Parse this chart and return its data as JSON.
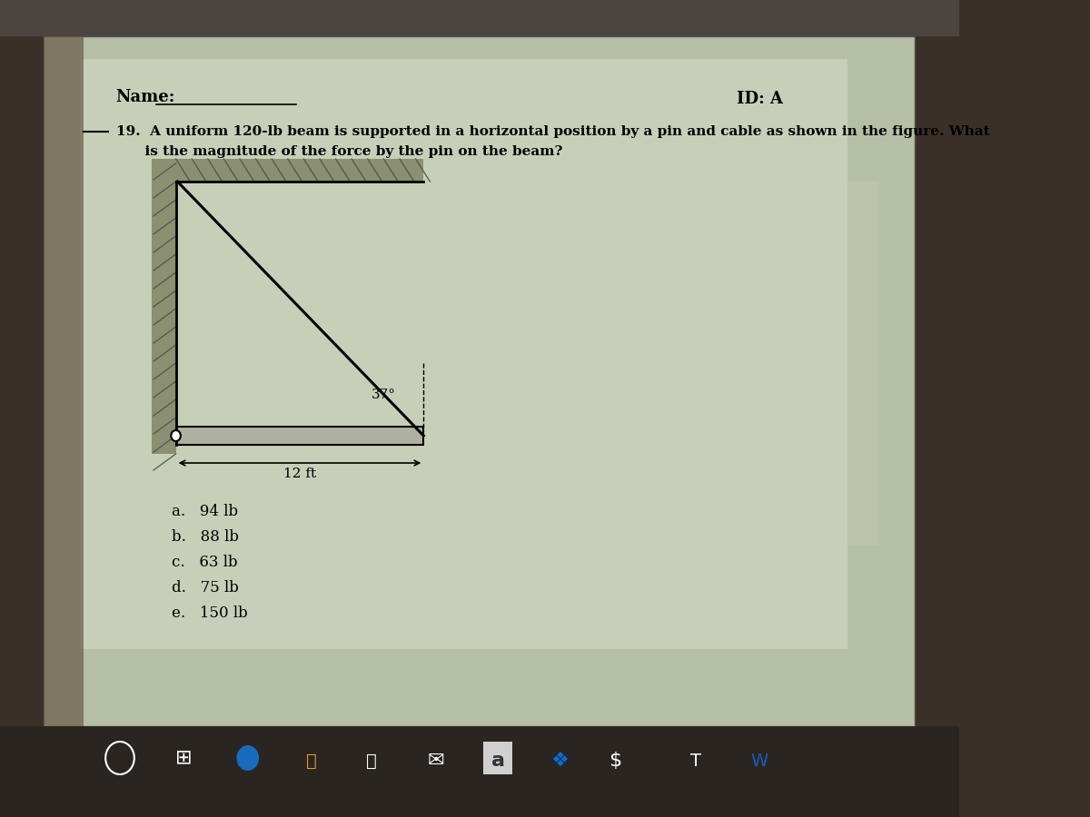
{
  "outer_bg": "#3a3028",
  "screen_bg": "#b5bfa5",
  "paper_bg": "#c8cfb8",
  "title_name": "Name:",
  "title_id": "ID: A",
  "question_line": "19.  A uniform 120-lb beam is supported in a horizontal position by a pin and cable as shown in the figure. What",
  "question_line2": "      is the magnitude of the force by the pin on the beam?",
  "choices_a": "a.   94 lb",
  "choices_b": "b.   88 lb",
  "choices_c": "c.   63 lb",
  "choices_d": "d.   75 lb",
  "choices_e": "e.   150 lb",
  "angle_label": "37°",
  "dim_label": "12 ft",
  "text_color": "#000000",
  "beam_fill": "#b0b0a0",
  "wall_hatch_color": "#7a8060",
  "diagram_bg": "#c8cfb8"
}
